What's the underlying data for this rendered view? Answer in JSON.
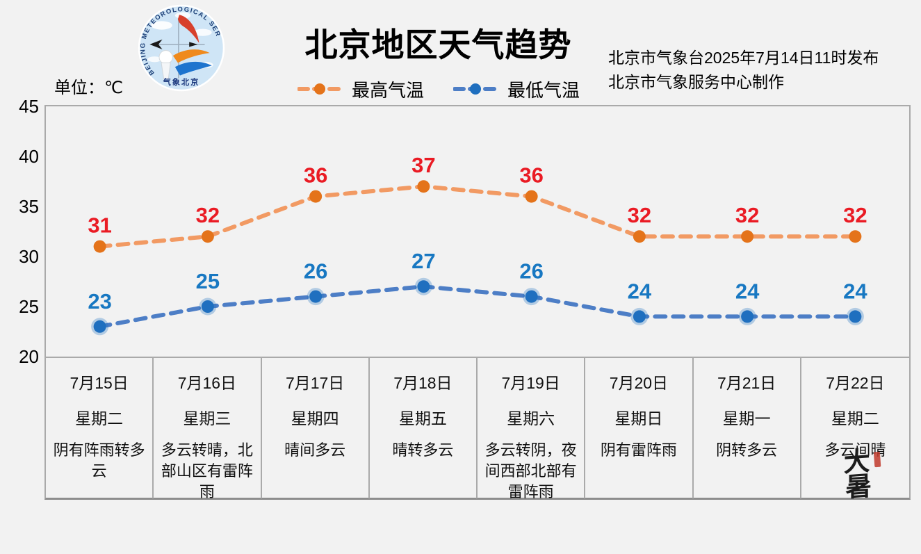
{
  "header": {
    "title": "北京地区天气趋势",
    "unit_label": "单位：℃",
    "issued_line1": "北京市气象台2025年7月14日11时发布",
    "issued_line2": "北京市气象服务中心制作",
    "logo": {
      "arc_text": "BEIJING  METEOROLOGICAL  SERVICE",
      "bottom_text": "气象北京"
    }
  },
  "legend": [
    {
      "label": "最高气温",
      "line_color": "#f29a63",
      "marker_color": "#e4731a"
    },
    {
      "label": "最低气温",
      "line_color": "#4d7ec6",
      "marker_color": "#1f6fbf"
    }
  ],
  "chart_data": {
    "type": "line",
    "title": "北京地区天气趋势",
    "x": [
      "7月15日",
      "7月16日",
      "7月17日",
      "7月18日",
      "7月19日",
      "7月20日",
      "7月21日",
      "7月22日"
    ],
    "series": [
      {
        "name": "最高气温",
        "values": [
          31,
          32,
          36,
          37,
          36,
          32,
          32,
          32
        ],
        "line_color": "#f29a63",
        "marker_color": "#e4731a",
        "label_color": "#ea1b24",
        "dash": true
      },
      {
        "name": "最低气温",
        "values": [
          23,
          25,
          26,
          27,
          26,
          24,
          24,
          24
        ],
        "line_color": "#4d7ec6",
        "marker_color": "#1f6fbf",
        "label_color": "#1878c2",
        "dash": true
      }
    ],
    "ylabel": "℃",
    "ylim": [
      20,
      45
    ],
    "yticks": [
      45,
      40,
      35,
      30,
      25,
      20
    ],
    "grid": false,
    "legend_position": "top"
  },
  "days": [
    {
      "date": "7月15日",
      "weekday": "星期二",
      "weather": "阴有阵雨转多云"
    },
    {
      "date": "7月16日",
      "weekday": "星期三",
      "weather": "多云转晴，北部山区有雷阵雨"
    },
    {
      "date": "7月17日",
      "weekday": "星期四",
      "weather": "晴间多云"
    },
    {
      "date": "7月18日",
      "weekday": "星期五",
      "weather": "晴转多云"
    },
    {
      "date": "7月19日",
      "weekday": "星期六",
      "weather": "多云转阴，夜间西部北部有雷阵雨"
    },
    {
      "date": "7月20日",
      "weekday": "星期日",
      "weather": "阴有雷阵雨"
    },
    {
      "date": "7月21日",
      "weekday": "星期一",
      "weather": "阴转多云"
    },
    {
      "date": "7月22日",
      "weekday": "星期二",
      "weather": "多云间晴"
    }
  ],
  "seal": {
    "text": "大暑"
  },
  "colors": {
    "background": "#f2f2f2",
    "frame_border": "#aaaaaa",
    "high_label": "#ea1b24",
    "low_label": "#1878c2",
    "text": "#000000"
  }
}
